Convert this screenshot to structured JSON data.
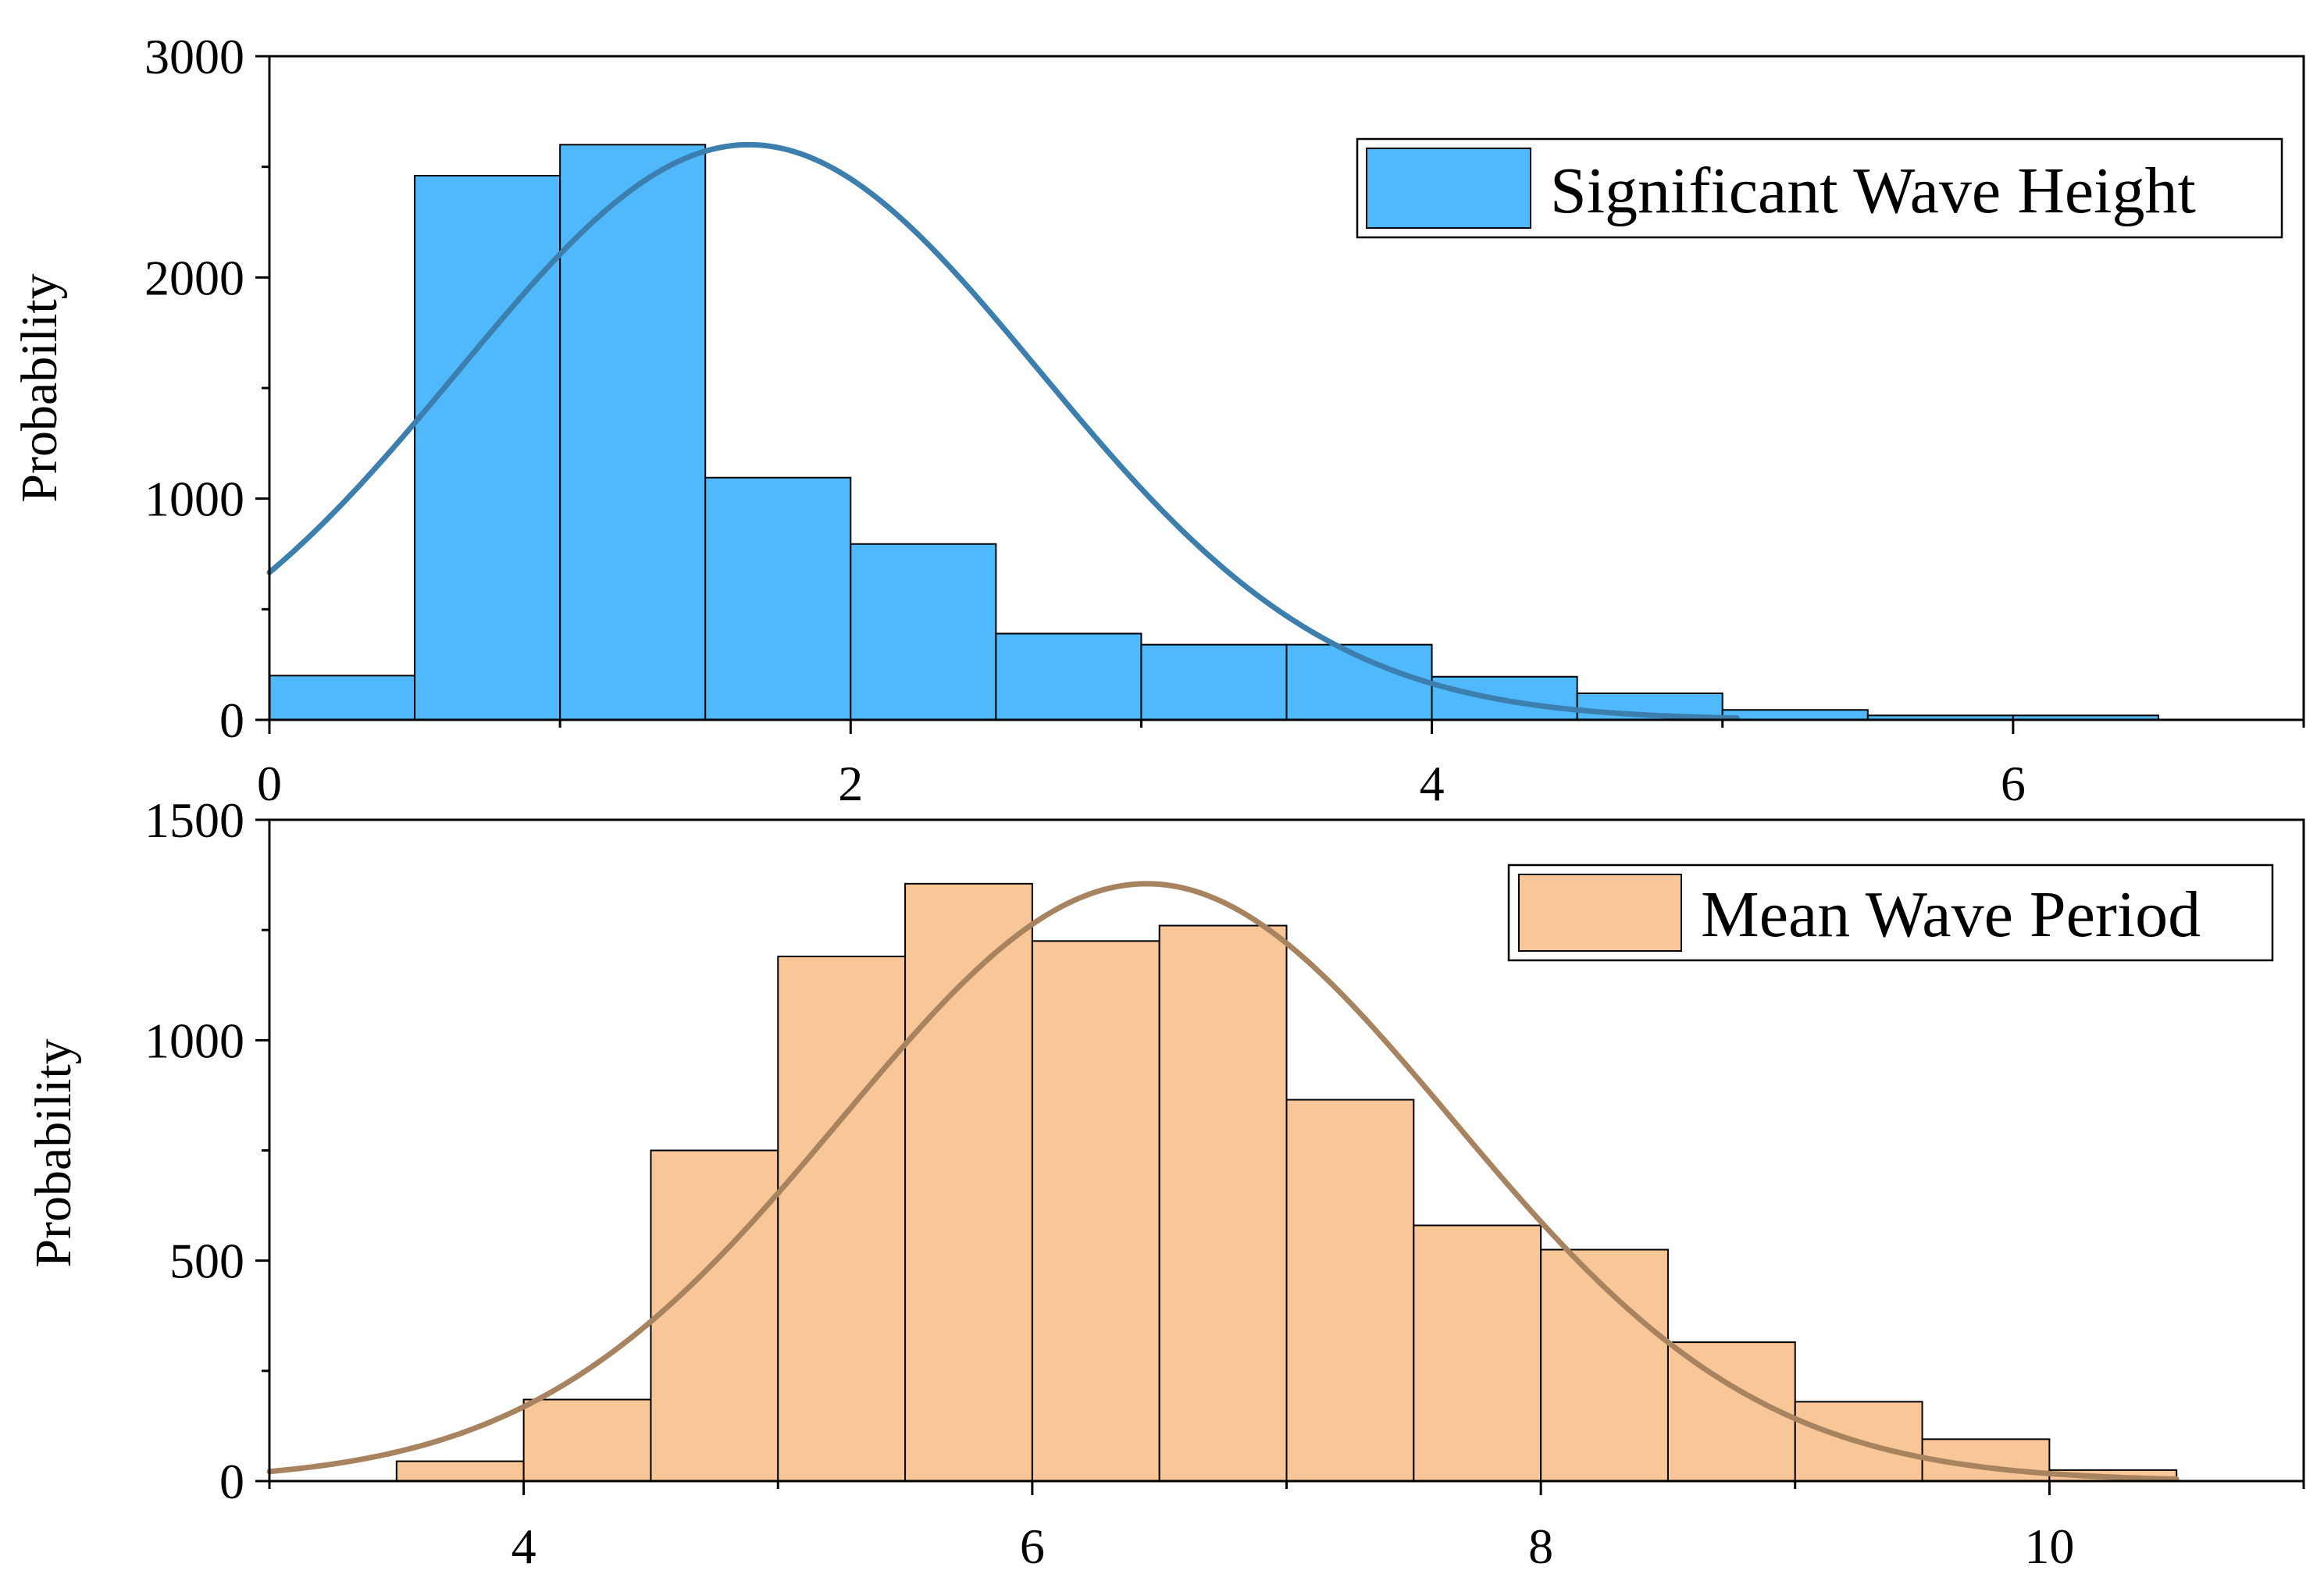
{
  "chart_data": [
    {
      "type": "bar",
      "title": "",
      "xlabel": "",
      "ylabel": "Probability",
      "xlim": [
        0,
        7
      ],
      "ylim": [
        0,
        3000
      ],
      "x_ticks": [
        0,
        2,
        4,
        6
      ],
      "y_ticks": [
        0,
        1000,
        2000,
        3000
      ],
      "bin_width": 0.5,
      "bin_starts": [
        0,
        0.5,
        1,
        1.5,
        2,
        2.5,
        3,
        3.5,
        4,
        4.5,
        5,
        5.5,
        6
      ],
      "values": [
        200,
        2460,
        2600,
        1095,
        795,
        390,
        340,
        340,
        195,
        120,
        45,
        20,
        20
      ],
      "legend": "Significant Wave Height",
      "legend_position": "top-right",
      "fit_curve": {
        "type": "normal",
        "peak": 2600,
        "mean": 1.65,
        "sd": 1.0,
        "x_range": [
          0,
          5.05
        ]
      },
      "colors": {
        "fill": "#4FB9FC",
        "curve": "#3C7FAE"
      }
    },
    {
      "type": "bar",
      "title": "",
      "xlabel": "",
      "ylabel": "Probability",
      "xlim": [
        3,
        11
      ],
      "ylim": [
        0,
        1500
      ],
      "x_ticks": [
        4,
        6,
        8,
        10
      ],
      "y_ticks": [
        0,
        500,
        1000,
        1500
      ],
      "bin_width": 0.5,
      "bin_starts": [
        3.5,
        4,
        4.5,
        5,
        5.5,
        6,
        6.5,
        7,
        7.5,
        8,
        8.5,
        9,
        9.5,
        10
      ],
      "values": [
        45,
        185,
        750,
        1190,
        1355,
        1225,
        1260,
        865,
        580,
        525,
        315,
        180,
        95,
        25
      ],
      "legend": "Mean Wave Period",
      "legend_position": "top-right",
      "fit_curve": {
        "type": "normal",
        "peak": 1355,
        "mean": 6.45,
        "sd": 1.2,
        "x_range": [
          3,
          10.5
        ]
      },
      "colors": {
        "fill": "#F9C797",
        "curve": "#A88360"
      }
    }
  ]
}
